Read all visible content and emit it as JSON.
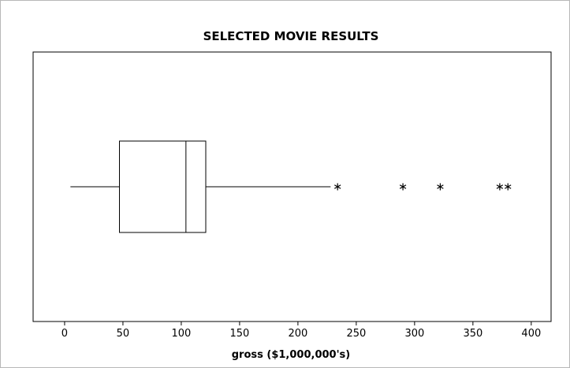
{
  "chart_data": {
    "type": "boxplot",
    "orientation": "horizontal",
    "title": "SELECTED MOVIE RESULTS",
    "xlabel": "gross ($1,000,000's)",
    "ylabel": "",
    "xlim": [
      -27,
      417
    ],
    "xticks": [
      0,
      50,
      100,
      150,
      200,
      250,
      300,
      350,
      400
    ],
    "xtick_labels": [
      "0",
      "50",
      "100",
      "150",
      "200",
      "250",
      "300",
      "350",
      "400"
    ],
    "box": {
      "whisker_low": 5,
      "q1": 47,
      "median": 104,
      "q3": 121,
      "whisker_high": 228
    },
    "outliers": [
      234,
      290,
      322,
      373,
      380
    ],
    "outlier_marker": "asterisk",
    "grid": false,
    "colors": {
      "stroke": "#000000",
      "frame": "#b8b8b8",
      "background": "#ffffff"
    }
  }
}
